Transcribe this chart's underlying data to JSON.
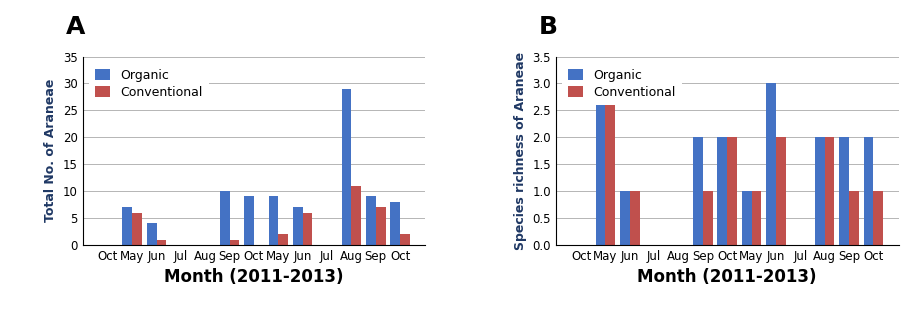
{
  "categories": [
    "Oct",
    "May",
    "Jun",
    "Jul",
    "Aug",
    "Sep",
    "Oct",
    "May",
    "Jun",
    "Jul",
    "Aug",
    "Sep",
    "Oct"
  ],
  "panel_A": {
    "label": "A",
    "ylabel": "Total No. of Araneae",
    "xlabel": "Month (2011-2013)",
    "organic": [
      0,
      7,
      4,
      0,
      0,
      10,
      9,
      9,
      7,
      0,
      29,
      9,
      8
    ],
    "conventional": [
      0,
      6,
      1,
      0,
      0,
      1,
      0,
      2,
      6,
      0,
      11,
      7,
      2
    ],
    "ylim": [
      0,
      35
    ],
    "yticks": [
      0,
      5,
      10,
      15,
      20,
      25,
      30,
      35
    ]
  },
  "panel_B": {
    "label": "B",
    "ylabel": "Species richness of Araneae",
    "xlabel": "Month (2011-2013)",
    "organic": [
      0,
      3,
      1,
      0,
      0,
      2,
      2,
      1,
      3,
      0,
      2,
      2,
      2
    ],
    "conventional": [
      0,
      3,
      1,
      0,
      0,
      1,
      2,
      1,
      2,
      0,
      2,
      1,
      1
    ],
    "ylim": [
      0,
      3.5
    ],
    "yticks": [
      0,
      0.5,
      1.0,
      1.5,
      2.0,
      2.5,
      3.0,
      3.5
    ]
  },
  "color_organic": "#4472C4",
  "color_conventional": "#C0504D",
  "legend_labels": [
    "Organic",
    "Conventional"
  ],
  "bar_width": 0.4,
  "background_color": "#FFFFFF",
  "ylabel_fontsize": 9,
  "ylabel_color": "#1F3864",
  "tick_fontsize": 8.5,
  "panel_label_fontsize": 18,
  "legend_fontsize": 9,
  "xlabel_fontsize": 12
}
